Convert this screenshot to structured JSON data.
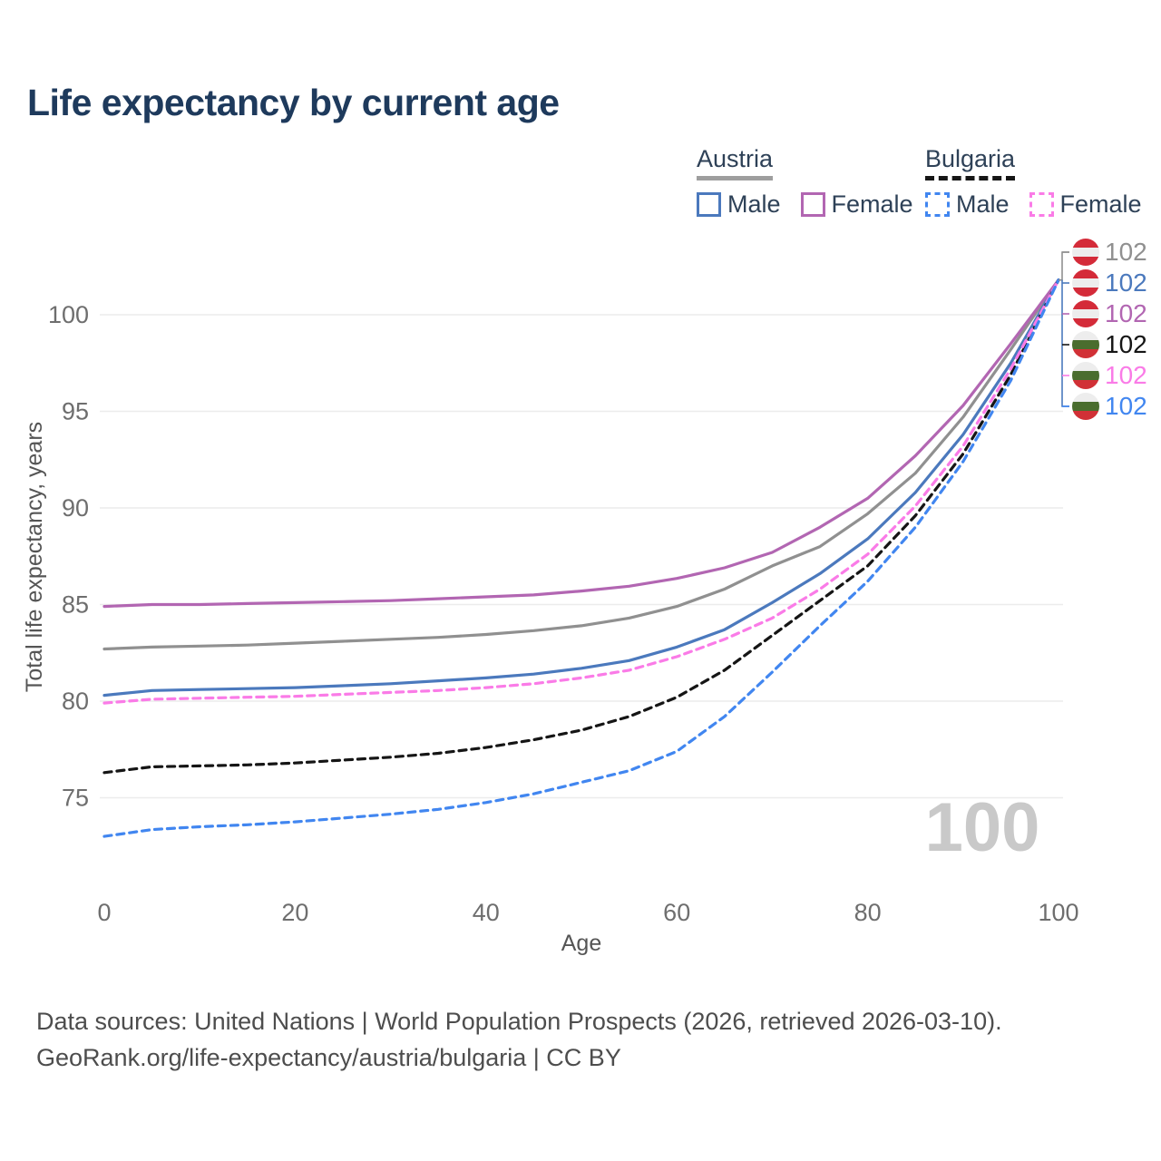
{
  "title": "Life expectancy by current age",
  "legend": {
    "austria": {
      "title": "Austria",
      "male": "Male",
      "female": "Female"
    },
    "bulgaria": {
      "title": "Bulgaria",
      "male": "Male",
      "female": "Female"
    }
  },
  "colors": {
    "austria_total": "#909090",
    "austria_male": "#4b79bd",
    "austria_female": "#b266b2",
    "bulgaria_total": "#151515",
    "bulgaria_male": "#4186f0",
    "bulgaria_female": "#fa7be7",
    "title_text": "#1e3a5c",
    "axis_text": "#6e6e6e",
    "axis_title_text": "#555555",
    "grid": "#ececec",
    "watermark": "#c9c9c9",
    "flag_austria_red": "#d42b39",
    "flag_bulgaria_green": "#4a6d2e",
    "flag_bulgaria_red": "#d13036",
    "flag_white": "#ededed"
  },
  "chart_data": {
    "type": "line",
    "title": "Life expectancy by current age",
    "xlabel": "Age",
    "ylabel": "Total life expectancy, years",
    "xticks": [
      0,
      20,
      40,
      60,
      80,
      100
    ],
    "yticks": [
      75,
      80,
      85,
      90,
      95,
      100
    ],
    "xlim": [
      0,
      100
    ],
    "ylim": [
      72,
      103
    ],
    "grid": "horizontal",
    "legend_position": "top-right",
    "watermark": "100",
    "x": [
      0,
      5,
      10,
      15,
      20,
      25,
      30,
      35,
      40,
      45,
      50,
      55,
      60,
      65,
      70,
      75,
      80,
      85,
      90,
      95,
      100
    ],
    "series": [
      {
        "name": "Austria",
        "country": "Austria",
        "sex": "Total",
        "color_key": "austria_total",
        "dash": "solid",
        "values": [
          82.7,
          82.8,
          82.85,
          82.9,
          83.0,
          83.1,
          83.2,
          83.3,
          83.45,
          83.65,
          83.9,
          84.3,
          84.9,
          85.8,
          87.0,
          88.0,
          89.7,
          91.8,
          94.7,
          98.2,
          101.8
        ],
        "end_label": "102",
        "label_row": 0,
        "flag": "austria"
      },
      {
        "name": "Austria Male",
        "country": "Austria",
        "sex": "Male",
        "color_key": "austria_male",
        "dash": "solid",
        "values": [
          80.3,
          80.55,
          80.6,
          80.65,
          80.7,
          80.8,
          80.9,
          81.05,
          81.2,
          81.4,
          81.7,
          82.1,
          82.8,
          83.7,
          85.1,
          86.6,
          88.4,
          90.8,
          93.8,
          97.5,
          101.8
        ],
        "end_label": "102",
        "label_row": 1,
        "flag": "austria"
      },
      {
        "name": "Austria Female",
        "country": "Austria",
        "sex": "Female",
        "color_key": "austria_female",
        "dash": "solid",
        "values": [
          84.9,
          85.0,
          85.0,
          85.05,
          85.1,
          85.15,
          85.2,
          85.3,
          85.4,
          85.5,
          85.7,
          85.95,
          86.35,
          86.9,
          87.7,
          89.0,
          90.5,
          92.7,
          95.3,
          98.5,
          101.8
        ],
        "end_label": "102",
        "label_row": 2,
        "flag": "austria"
      },
      {
        "name": "Bulgaria",
        "country": "Bulgaria",
        "sex": "Total",
        "color_key": "bulgaria_total",
        "dash": "8 6",
        "values": [
          76.3,
          76.6,
          76.65,
          76.7,
          76.8,
          76.95,
          77.1,
          77.3,
          77.6,
          78.0,
          78.5,
          79.2,
          80.2,
          81.6,
          83.4,
          85.2,
          87.0,
          89.6,
          92.8,
          96.9,
          101.8
        ],
        "end_label": "102",
        "label_row": 3,
        "flag": "bulgaria"
      },
      {
        "name": "Bulgaria Female",
        "country": "Bulgaria",
        "sex": "Female",
        "color_key": "bulgaria_female",
        "dash": "8 6",
        "values": [
          79.9,
          80.1,
          80.15,
          80.2,
          80.25,
          80.35,
          80.45,
          80.55,
          80.7,
          80.9,
          81.2,
          81.6,
          82.3,
          83.2,
          84.3,
          85.8,
          87.6,
          90.1,
          93.2,
          97.2,
          101.8
        ],
        "end_label": "102",
        "label_row": 4,
        "flag": "bulgaria"
      },
      {
        "name": "Bulgaria Male",
        "country": "Bulgaria",
        "sex": "Male",
        "color_key": "bulgaria_male",
        "dash": "8 6",
        "values": [
          73.0,
          73.35,
          73.5,
          73.6,
          73.75,
          73.95,
          74.15,
          74.4,
          74.75,
          75.2,
          75.8,
          76.4,
          77.4,
          79.2,
          81.5,
          83.9,
          86.2,
          89.0,
          92.4,
          96.6,
          101.8
        ],
        "end_label": "102",
        "label_row": 5,
        "flag": "bulgaria"
      }
    ]
  },
  "footer": {
    "line1": "Data sources: United Nations | World Population Prospects (2026, retrieved 2026-03-10).",
    "line2": "GeoRank.org/life-expectancy/austria/bulgaria | CC BY"
  }
}
